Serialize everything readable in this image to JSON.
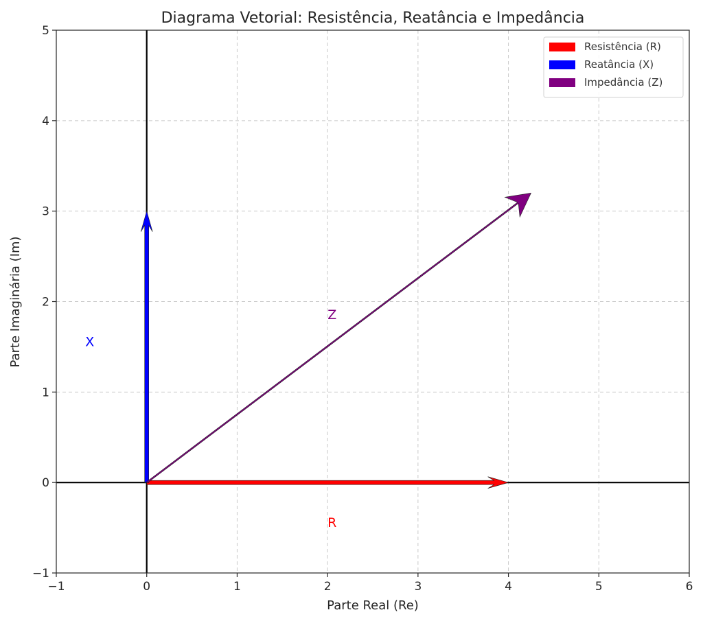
{
  "chart_data": {
    "type": "vector",
    "title": "Diagrama Vetorial: Resistência, Reatância e Impedância",
    "xlabel": "Parte Real (Re)",
    "ylabel": "Parte Imaginária (Im)",
    "xlim": [
      -1,
      6
    ],
    "ylim": [
      -1,
      5
    ],
    "x_ticks": [
      "−1",
      "0",
      "1",
      "2",
      "3",
      "4",
      "5",
      "6"
    ],
    "y_ticks": [
      "−1",
      "0",
      "1",
      "2",
      "3",
      "4",
      "5"
    ],
    "grid": true,
    "legend_position": "top-right",
    "series": [
      {
        "name": "Resistência (R)",
        "color": "#ff0000",
        "x0": 0,
        "y0": 0,
        "dx": 4,
        "dy": 0,
        "label": "R",
        "label_x": 2.05,
        "label_y": -0.45
      },
      {
        "name": "Reatância (X)",
        "color": "#0000ff",
        "x0": 0,
        "y0": 0,
        "dx": 0,
        "dy": 3,
        "label": "X",
        "label_x": -0.63,
        "label_y": 1.55
      },
      {
        "name": "Impedância (Z)",
        "color": "#800080",
        "x0": 0,
        "y0": 0,
        "dx": 4.25,
        "dy": 3.2,
        "label": "Z",
        "label_x": 2.05,
        "label_y": 1.85
      }
    ]
  }
}
